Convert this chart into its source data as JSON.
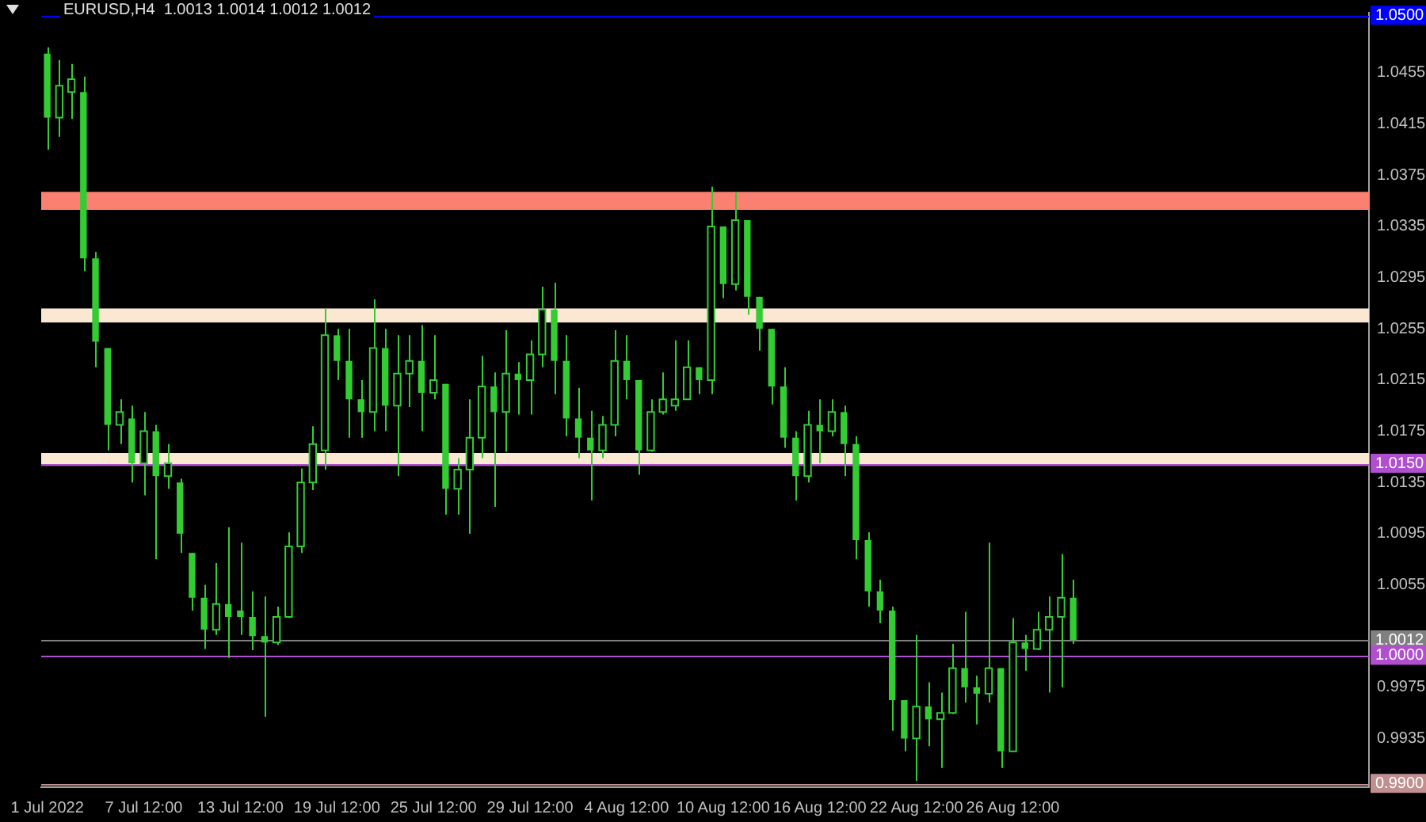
{
  "chart_data": {
    "type": "candlestick",
    "title": "EURUSD,H4  1.0013 1.0014 1.0012 1.0012",
    "color": "#33cc33",
    "categories": [
      "1 Jul 2022",
      null,
      null,
      null,
      null,
      null,
      null,
      null,
      "7 Jul 12:00",
      null,
      null,
      null,
      null,
      null,
      null,
      null,
      "13 Jul 12:00",
      null,
      null,
      null,
      null,
      null,
      null,
      null,
      "19 Jul 12:00",
      null,
      null,
      null,
      null,
      null,
      null,
      null,
      "25 Jul 12:00",
      null,
      null,
      null,
      null,
      null,
      null,
      null,
      "29 Jul 12:00",
      null,
      null,
      null,
      null,
      null,
      null,
      null,
      "4 Aug 12:00",
      null,
      null,
      null,
      null,
      null,
      null,
      null,
      "10 Aug 12:00",
      null,
      null,
      null,
      null,
      null,
      null,
      null,
      "16 Aug 12:00",
      null,
      null,
      null,
      null,
      null,
      null,
      null,
      "22 Aug 12:00",
      null,
      null,
      null,
      null,
      null,
      null,
      null,
      "26 Aug 12:00",
      null,
      null,
      null,
      null,
      null,
      null,
      null,
      null,
      null,
      null,
      null,
      null,
      null,
      null,
      null,
      null,
      null,
      null,
      null,
      null,
      null,
      null,
      null,
      null,
      null,
      null,
      null,
      null,
      null
    ],
    "ohlc": [
      [
        1.047,
        1.0475,
        1.0395,
        1.042
      ],
      [
        1.042,
        1.0465,
        1.0405,
        1.0445
      ],
      [
        1.044,
        1.0462,
        1.0419,
        1.045
      ],
      [
        1.044,
        1.0452,
        1.03,
        1.031
      ],
      [
        1.031,
        1.0315,
        1.0225,
        1.0245
      ],
      [
        1.024,
        1.024,
        1.016,
        1.018
      ],
      [
        1.018,
        1.02,
        1.0165,
        1.019
      ],
      [
        1.0185,
        1.0195,
        1.0135,
        1.015
      ],
      [
        1.015,
        1.019,
        1.0125,
        1.0175
      ],
      [
        1.0175,
        1.018,
        1.0075,
        1.014
      ],
      [
        1.014,
        1.0165,
        1.013,
        1.015
      ],
      [
        1.0135,
        1.0138,
        1.008,
        1.0095
      ],
      [
        1.008,
        1.008,
        1.0035,
        1.0045
      ],
      [
        1.0045,
        1.0055,
        1.0005,
        1.002
      ],
      [
        1.002,
        1.0072,
        1.0016,
        1.004
      ],
      [
        1.004,
        1.01,
        0.9998,
        1.003
      ],
      [
        1.0035,
        1.0088,
        1.0016,
        1.003
      ],
      [
        1.003,
        1.005,
        1.0004,
        1.0015
      ],
      [
        1.0015,
        1.0046,
        0.9952,
        1.001
      ],
      [
        1.001,
        1.0038,
        1.0008,
        1.003
      ],
      [
        1.003,
        1.0096,
        1.0029,
        1.0085
      ],
      [
        1.0085,
        1.0146,
        1.008,
        1.0135
      ],
      [
        1.0135,
        1.0179,
        1.0129,
        1.0165
      ],
      [
        1.016,
        1.0271,
        1.0145,
        1.025
      ],
      [
        1.025,
        1.0255,
        1.0215,
        1.023
      ],
      [
        1.023,
        1.0255,
        1.017,
        1.02
      ],
      [
        1.02,
        1.0215,
        1.017,
        1.019
      ],
      [
        1.019,
        1.0278,
        1.0175,
        1.024
      ],
      [
        1.024,
        1.0255,
        1.0175,
        1.0195
      ],
      [
        1.0195,
        1.025,
        1.014,
        1.022
      ],
      [
        1.022,
        1.025,
        1.0194,
        1.023
      ],
      [
        1.023,
        1.0258,
        1.0175,
        1.0205
      ],
      [
        1.0205,
        1.025,
        1.02,
        1.0215
      ],
      [
        1.0212,
        1.0212,
        1.011,
        1.013
      ],
      [
        1.013,
        1.0154,
        1.011,
        1.0145
      ],
      [
        1.0145,
        1.02,
        1.0095,
        1.017
      ],
      [
        1.017,
        1.0234,
        1.0154,
        1.021
      ],
      [
        1.021,
        1.0221,
        1.0116,
        1.019
      ],
      [
        1.019,
        1.0254,
        1.0159,
        1.022
      ],
      [
        1.022,
        1.0229,
        1.0188,
        1.0215
      ],
      [
        1.0215,
        1.0246,
        1.0188,
        1.0235
      ],
      [
        1.0235,
        1.0288,
        1.0225,
        1.027
      ],
      [
        1.027,
        1.0291,
        1.0204,
        1.023
      ],
      [
        1.023,
        1.025,
        1.0171,
        1.0185
      ],
      [
        1.0185,
        1.0209,
        1.0154,
        1.017
      ],
      [
        1.017,
        1.0191,
        1.0121,
        1.016
      ],
      [
        1.016,
        1.0187,
        1.0154,
        1.018
      ],
      [
        1.018,
        1.0254,
        1.0171,
        1.023
      ],
      [
        1.023,
        1.025,
        1.02,
        1.0215
      ],
      [
        1.0215,
        1.0215,
        1.0141,
        1.016
      ],
      [
        1.016,
        1.02,
        1.0159,
        1.019
      ],
      [
        1.019,
        1.0221,
        1.0188,
        1.02
      ],
      [
        1.0195,
        1.0246,
        1.0191,
        1.02
      ],
      [
        1.02,
        1.0246,
        1.02,
        1.0225
      ],
      [
        1.0225,
        1.0225,
        1.0204,
        1.0215
      ],
      [
        1.0215,
        1.0366,
        1.0204,
        1.0335
      ],
      [
        1.0335,
        1.0335,
        1.0279,
        1.029
      ],
      [
        1.029,
        1.0362,
        1.0285,
        1.034
      ],
      [
        1.034,
        1.034,
        1.0266,
        1.028
      ],
      [
        1.028,
        1.028,
        1.0238,
        1.0255
      ],
      [
        1.0255,
        1.0255,
        1.0196,
        1.021
      ],
      [
        1.021,
        1.0225,
        1.0162,
        1.017
      ],
      [
        1.017,
        1.0175,
        1.0121,
        1.014
      ],
      [
        1.014,
        1.0191,
        1.0135,
        1.018
      ],
      [
        1.018,
        1.02,
        1.015,
        1.0175
      ],
      [
        1.0175,
        1.02,
        1.0171,
        1.019
      ],
      [
        1.019,
        1.0195,
        1.014,
        1.0165
      ],
      [
        1.0165,
        1.0171,
        1.0075,
        1.009
      ],
      [
        1.009,
        1.0096,
        1.0038,
        1.005
      ],
      [
        1.005,
        1.0059,
        1.0025,
        1.0035
      ],
      [
        1.0035,
        1.0038,
        0.9941,
        0.9965
      ],
      [
        0.9965,
        0.9965,
        0.9925,
        0.9935
      ],
      [
        0.9935,
        1.0016,
        0.9902,
        0.996
      ],
      [
        0.996,
        0.9979,
        0.9929,
        0.995
      ],
      [
        0.995,
        0.9971,
        0.9912,
        0.9955
      ],
      [
        0.9955,
        1.0009,
        0.9954,
        0.999
      ],
      [
        0.999,
        1.0034,
        0.9963,
        0.9975
      ],
      [
        0.9975,
        0.9984,
        0.9946,
        0.997
      ],
      [
        0.997,
        1.0088,
        0.9963,
        0.999
      ],
      [
        0.999,
        0.999,
        0.9912,
        0.9925
      ],
      [
        0.9925,
        1.0029,
        0.9925,
        1.001
      ],
      [
        1.001,
        1.0016,
        0.9988,
        1.0005
      ],
      [
        1.0005,
        1.0034,
        1.0004,
        1.002
      ],
      [
        1.002,
        1.0046,
        0.9971,
        1.003
      ],
      [
        1.003,
        1.0079,
        0.9975,
        1.0045
      ],
      [
        1.0045,
        1.0059,
        1.0009,
        1.0012
      ],
      null,
      null,
      null,
      null,
      null,
      null,
      null,
      null,
      null,
      null,
      null,
      null,
      null,
      null,
      null,
      null,
      null,
      null,
      null,
      null,
      null,
      null,
      null,
      null
    ],
    "ylim": [
      0.9897,
      1.0502
    ],
    "yticks": [
      1.0455,
      1.0415,
      1.0375,
      1.0335,
      1.0295,
      1.0255,
      1.0215,
      1.0175,
      1.0135,
      1.0095,
      1.0055,
      0.9975,
      0.9935
    ],
    "ref_lines": [
      {
        "axis": "y",
        "value": 1.05,
        "label": "1.0500",
        "color": "#0000ff"
      },
      {
        "axis": "y",
        "value": 1.015,
        "label": "1.0150",
        "color": "#b04fd0"
      },
      {
        "axis": "y",
        "value": 1.0012,
        "label": "1.0012",
        "color": "#808080"
      },
      {
        "axis": "y",
        "value": 1.0,
        "label": "1.0000",
        "color": "#b04fd0"
      },
      {
        "axis": "y",
        "value": 0.99,
        "label": "0.9900",
        "color": "#c09090"
      }
    ],
    "bands": [
      {
        "axis": "y",
        "from": 1.0348,
        "to": 1.0362,
        "color": "#fa8072"
      },
      {
        "axis": "y",
        "from": 1.026,
        "to": 1.0271,
        "color": "#fbe8d3"
      },
      {
        "axis": "y",
        "from": 1.0148,
        "to": 1.0158,
        "color": "#fbe8d3"
      }
    ]
  }
}
